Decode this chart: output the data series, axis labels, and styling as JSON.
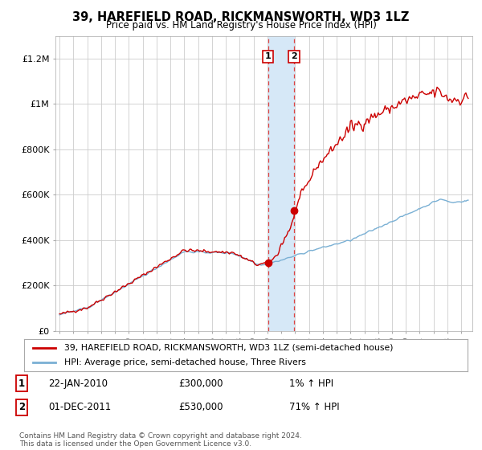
{
  "title": "39, HAREFIELD ROAD, RICKMANSWORTH, WD3 1LZ",
  "subtitle": "Price paid vs. HM Land Registry's House Price Index (HPI)",
  "legend_line1": "39, HAREFIELD ROAD, RICKMANSWORTH, WD3 1LZ (semi-detached house)",
  "legend_line2": "HPI: Average price, semi-detached house, Three Rivers",
  "footer": "Contains HM Land Registry data © Crown copyright and database right 2024.\nThis data is licensed under the Open Government Licence v3.0.",
  "transaction1_date": "22-JAN-2010",
  "transaction1_price": "£300,000",
  "transaction1_hpi": "1% ↑ HPI",
  "transaction2_date": "01-DEC-2011",
  "transaction2_price": "£530,000",
  "transaction2_hpi": "71% ↑ HPI",
  "red_line_color": "#cc0000",
  "blue_line_color": "#7ab0d4",
  "shaded_color": "#d6e8f7",
  "dashed_line_color": "#dd4444",
  "background_color": "#ffffff",
  "grid_color": "#cccccc",
  "ylim": [
    0,
    1300000
  ],
  "yticks": [
    0,
    200000,
    400000,
    600000,
    800000,
    1000000,
    1200000
  ],
  "ytick_labels": [
    "£0",
    "£200K",
    "£400K",
    "£600K",
    "£800K",
    "£1M",
    "£1.2M"
  ],
  "transaction1_x": 2010.06,
  "transaction1_y": 300000,
  "transaction2_x": 2011.92,
  "transaction2_y": 530000,
  "xlim_left": 1994.7,
  "xlim_right": 2024.8
}
